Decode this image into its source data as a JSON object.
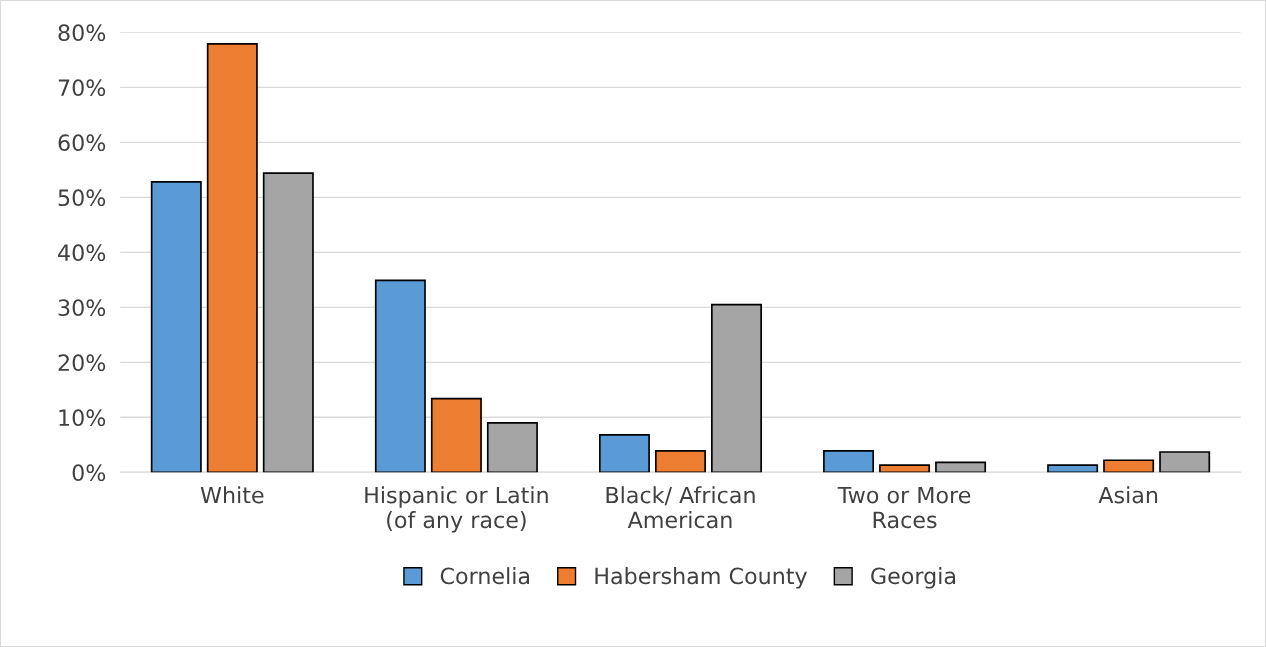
{
  "chart_data": {
    "type": "bar",
    "categories": [
      "White",
      "Hispanic or Latin\n(of any race)",
      "Black/ African\nAmerican",
      "Two or More\nRaces",
      "Asian"
    ],
    "series": [
      {
        "name": "Cornelia",
        "color": "#5b9bd5",
        "values": [
          52.8,
          34.9,
          6.8,
          3.9,
          1.3
        ]
      },
      {
        "name": "Habersham County",
        "color": "#ed7d31",
        "values": [
          77.9,
          13.4,
          3.9,
          1.3,
          2.2
        ]
      },
      {
        "name": "Georgia",
        "color": "#a5a5a5",
        "values": [
          54.4,
          9.0,
          30.5,
          1.8,
          3.7
        ]
      }
    ],
    "ylim": [
      0,
      80
    ],
    "yticks": [
      {
        "value": 0,
        "label": "0%"
      },
      {
        "value": 10,
        "label": "10%"
      },
      {
        "value": 20,
        "label": "20%"
      },
      {
        "value": 30,
        "label": "30%"
      },
      {
        "value": 40,
        "label": "40%"
      },
      {
        "value": 50,
        "label": "50%"
      },
      {
        "value": 60,
        "label": "60%"
      },
      {
        "value": 70,
        "label": "70%"
      },
      {
        "value": 80,
        "label": "80%"
      }
    ],
    "grid": "y",
    "legend": "bottom"
  }
}
